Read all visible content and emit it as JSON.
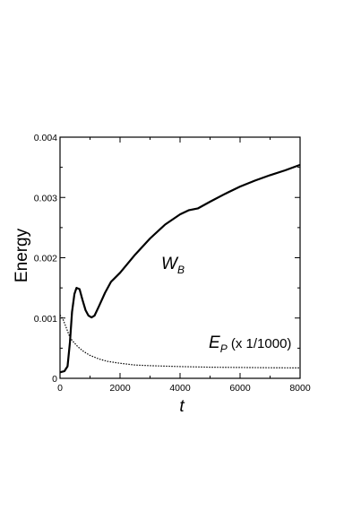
{
  "chart_data": {
    "type": "line",
    "xlabel": "t",
    "ylabel": "Energy",
    "xlim": [
      0,
      8000
    ],
    "ylim": [
      0,
      0.004
    ],
    "x_ticks": [
      0,
      2000,
      4000,
      6000,
      8000
    ],
    "x_tick_labels": [
      "0",
      "2000",
      "4000",
      "6000",
      "8000"
    ],
    "y_ticks": [
      0,
      0.001,
      0.002,
      0.003,
      0.004
    ],
    "y_tick_labels": [
      "0",
      "0.001",
      "0.002",
      "0.003",
      "0.004"
    ],
    "grid": false,
    "series": [
      {
        "name": "W_B",
        "style": "solid",
        "color": "#000000",
        "x": [
          0,
          150,
          250,
          330,
          400,
          480,
          550,
          650,
          750,
          850,
          950,
          1050,
          1150,
          1300,
          1500,
          1700,
          2000,
          2500,
          3000,
          3500,
          4000,
          4300,
          4600,
          5000,
          5500,
          6000,
          6500,
          7000,
          7500,
          8000
        ],
        "y": [
          0.0001,
          0.00012,
          0.0002,
          0.0006,
          0.0011,
          0.0014,
          0.0015,
          0.00148,
          0.0013,
          0.00113,
          0.00104,
          0.00101,
          0.00104,
          0.0012,
          0.00142,
          0.0016,
          0.00175,
          0.00205,
          0.00232,
          0.00255,
          0.00272,
          0.00279,
          0.00282,
          0.00293,
          0.00306,
          0.00318,
          0.00328,
          0.00337,
          0.00345,
          0.00354
        ]
      },
      {
        "name": "E_P (x 1/1000)",
        "style": "dotted",
        "color": "#000000",
        "x": [
          0,
          100,
          200,
          300,
          400,
          600,
          800,
          1000,
          1300,
          1600,
          2000,
          2500,
          3000,
          4000,
          5000,
          6000,
          7000,
          8000
        ],
        "y": [
          0.00105,
          0.00098,
          0.00085,
          0.00072,
          0.00063,
          0.00052,
          0.00044,
          0.00038,
          0.00032,
          0.00028,
          0.00025,
          0.00022,
          0.00021,
          0.000195,
          0.000185,
          0.00018,
          0.000175,
          0.000172
        ]
      }
    ],
    "annotations": [
      {
        "main": "W",
        "sub": "B"
      },
      {
        "main": "E",
        "sub": "P",
        "suffix": " (x 1/1000)"
      }
    ]
  }
}
